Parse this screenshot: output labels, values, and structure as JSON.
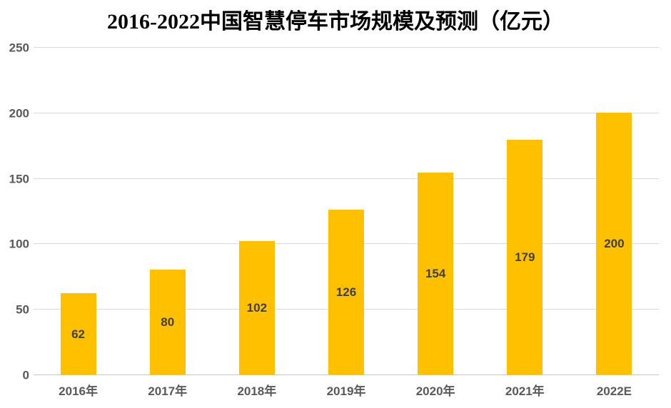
{
  "chart_data": {
    "type": "bar",
    "title": "2016-2022中国智慧停车市场规模及预测（亿元）",
    "categories": [
      "2016年",
      "2017年",
      "2018年",
      "2019年",
      "2020年",
      "2021年",
      "2022E"
    ],
    "values": [
      62,
      80,
      102,
      126,
      154,
      179,
      200
    ],
    "xlabel": "",
    "ylabel": "",
    "ylim": [
      0,
      250
    ],
    "y_ticks": [
      0,
      50,
      100,
      150,
      200,
      250
    ],
    "grid": true,
    "legend": "none",
    "bar_color": "#FFC000",
    "gridline_color": "#D9D9D9",
    "axis_label_color": "#595959",
    "value_label_color": "#404040",
    "title_color": "#000000"
  }
}
